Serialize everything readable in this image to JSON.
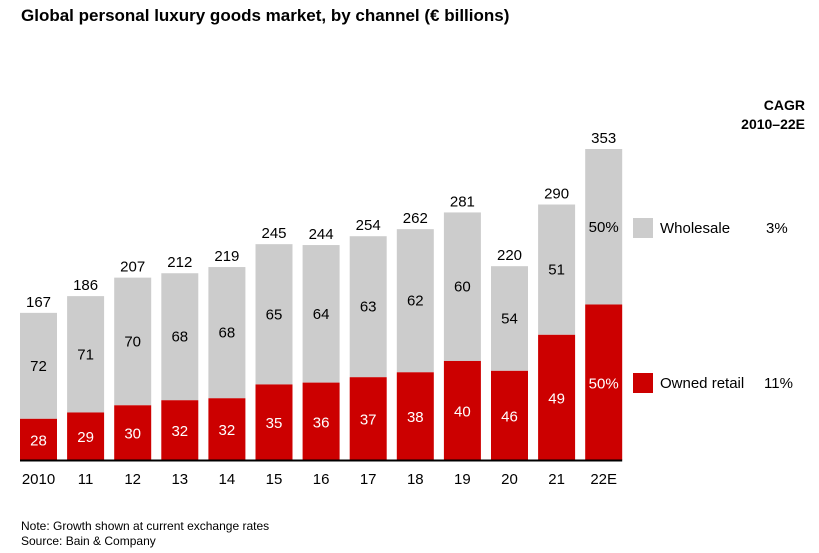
{
  "chart_data": {
    "type": "bar",
    "stacked": true,
    "title": "Global personal luxury goods market, by channel (€ billions)",
    "xlabel": "",
    "ylabel": "",
    "categories": [
      "2010",
      "11",
      "12",
      "13",
      "14",
      "15",
      "16",
      "17",
      "18",
      "19",
      "20",
      "21",
      "22E"
    ],
    "totals": [
      167,
      186,
      207,
      212,
      219,
      245,
      244,
      254,
      262,
      281,
      220,
      290,
      353
    ],
    "series": [
      {
        "name": "Owned retail",
        "color": "#cc0000",
        "text_color": "#ffffff",
        "share_labels": [
          "28",
          "29",
          "30",
          "32",
          "32",
          "35",
          "36",
          "37",
          "38",
          "40",
          "46",
          "49",
          "50%"
        ],
        "values_pct": [
          28,
          29,
          30,
          32,
          32,
          35,
          36,
          37,
          38,
          40,
          46,
          49,
          50
        ],
        "cagr": "11%"
      },
      {
        "name": "Wholesale",
        "color": "#cccccc",
        "text_color": "#000000",
        "share_labels": [
          "72",
          "71",
          "70",
          "68",
          "68",
          "65",
          "64",
          "63",
          "62",
          "60",
          "54",
          "51",
          "50%"
        ],
        "values_pct": [
          72,
          71,
          70,
          68,
          68,
          65,
          64,
          63,
          62,
          60,
          54,
          51,
          50
        ],
        "cagr": "3%"
      }
    ],
    "ylim": [
      0,
      353
    ],
    "grid": false,
    "legend": "right",
    "cagr_header": [
      "CAGR",
      "2010–22E"
    ],
    "notes": [
      "Note: Growth shown at current exchange rates",
      "Source: Bain & Company"
    ]
  }
}
